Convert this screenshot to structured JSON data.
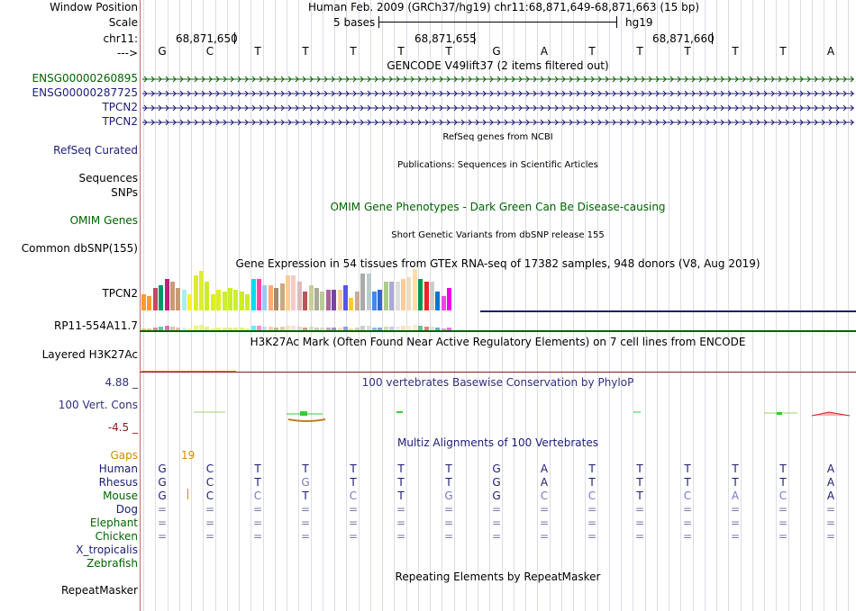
{
  "colors": {
    "navy": "#1c1c78",
    "green": "#006400",
    "orange": "#d28c00",
    "darkred": "#8b1a1a",
    "phylop_blue": "#303080",
    "grid": "#dcdce6"
  },
  "header": {
    "window_position_label": "Window Position",
    "window_position_value": "Human Feb. 2009 (GRCh37/hg19)   chr11:68,871,649-68,871,663 (15 bp)",
    "scale_label": "Scale",
    "scale_value": "5 bases",
    "scale_assembly": "hg19",
    "chrom_label": "chr11:",
    "arrow_label": "--->",
    "coord_ticks": [
      "68,871,650",
      "68,871,655",
      "68,871,660"
    ]
  },
  "reference_bases": [
    "G",
    "C",
    "T",
    "T",
    "T",
    "T",
    "T",
    "G",
    "A",
    "T",
    "T",
    "T",
    "T",
    "T",
    "A"
  ],
  "tracks": {
    "gencode_title": "GENCODE V49lift37 (2 items filtered out)",
    "gencode_items": [
      "ENSG00000260895",
      "ENSG00000287725",
      "TPCN2",
      "TPCN2"
    ],
    "refseq_title": "RefSeq genes from NCBI",
    "refseq_label": "RefSeq Curated",
    "pubs_title": "Publications: Sequences in Scientific Articles",
    "sequences_label": "Sequences",
    "snps_label": "SNPs",
    "omim_title": "OMIM Gene Phenotypes - Dark Green Can Be Disease-causing",
    "omim_label": "OMIM Genes",
    "dbsnp_title": "Short Genetic Variants from dbSNP release 155",
    "dbsnp_label": "Common dbSNP(155)",
    "gtex_title": "Gene Expression in 54 tissues from GTEx RNA-seq of 17382 samples, 948 donors (V8, Aug 2019)",
    "gtex_gene1": "TPCN2",
    "gtex_gene2": "RP11-554A11.7",
    "h3k27ac_title": "H3K27Ac Mark (Often Found Near Active Regulatory Elements) on 7 cell lines from ENCODE",
    "h3k27ac_label": "Layered H3K27Ac",
    "phylop_title": "100 vertebrates Basewise Conservation by PhyloP",
    "phylop_max": "4.88 _",
    "phylop_label": "100 Vert. Cons",
    "phylop_min": "-4.5 _",
    "multiz_title": "Multiz Alignments of 100 Vertebrates",
    "gaps_label": "Gaps",
    "gaps_value": "19",
    "species": [
      "Human",
      "Rhesus",
      "Mouse",
      "Dog",
      "Elephant",
      "Chicken",
      "X_tropicalis",
      "Zebrafish"
    ],
    "repeat_title": "Repeating Elements by RepeatMasker",
    "repeat_label": "RepeatMasker"
  },
  "alignments": {
    "Human": [
      "G",
      "C",
      "T",
      "T",
      "T",
      "T",
      "T",
      "G",
      "A",
      "T",
      "T",
      "T",
      "T",
      "T",
      "A"
    ],
    "Rhesus": [
      "G",
      "C",
      "T",
      "G",
      "T",
      "T",
      "T",
      "G",
      "A",
      "T",
      "T",
      "T",
      "T",
      "T",
      "A"
    ],
    "Mouse": [
      "G",
      "C",
      "C",
      "T",
      "C",
      "T",
      "G",
      "G",
      "C",
      "C",
      "T",
      "C",
      "A",
      "C",
      "A"
    ],
    "Dog": [
      "=",
      "=",
      "=",
      "=",
      "=",
      "=",
      "=",
      "=",
      "=",
      "=",
      "=",
      "=",
      "=",
      "=",
      "="
    ],
    "Elephant": [
      "=",
      "=",
      "=",
      "=",
      "=",
      "=",
      "=",
      "=",
      "=",
      "=",
      "=",
      "=",
      "=",
      "=",
      "="
    ],
    "Chicken": [
      "=",
      "=",
      "=",
      "=",
      "=",
      "=",
      "=",
      "=",
      "=",
      "=",
      "=",
      "=",
      "=",
      "=",
      "="
    ]
  },
  "gtex_expression": {
    "tpcn2": [
      0.4,
      0.35,
      0.55,
      0.6,
      0.75,
      0.7,
      0.55,
      0.5,
      0.4,
      0.85,
      0.95,
      0.7,
      0.4,
      0.5,
      0.45,
      0.55,
      0.5,
      0.45,
      0.4,
      0.75,
      0.75,
      0.6,
      0.6,
      0.55,
      0.65,
      0.85,
      0.85,
      0.7,
      0.45,
      0.6,
      0.55,
      0.45,
      0.5,
      0.5,
      0.5,
      0.6,
      0.3,
      0.45,
      0.9,
      0.9,
      0.45,
      0.5,
      0.7,
      0.7,
      0.7,
      0.75,
      0.8,
      1.0,
      0.75,
      0.7,
      0.7,
      0.45,
      0.35,
      0.55
    ],
    "colors": [
      "#ff9933",
      "#ff9933",
      "#cc4466",
      "#009966",
      "#bb2277",
      "#cc9977",
      "#cc9977",
      "#aaeeee",
      "#ffee33",
      "#ddee22",
      "#ddee33",
      "#ccee22",
      "#ddee22",
      "#ddee22",
      "#ccee33",
      "#ccee22",
      "#ccee33",
      "#ccee22",
      "#ccee22",
      "#00ddee",
      "#ff44aa",
      "#99ccee",
      "#ffaa77",
      "#aa8866",
      "#ccaa77",
      "#ffcc99",
      "#eecccc",
      "#ddbbbb",
      "#bb5555",
      "#cccc99",
      "#aaaa99",
      "#bbcc99",
      "#aa6699",
      "#7744aa",
      "#ffcc99",
      "#5555ee",
      "#ffcc22",
      "#ccaa99",
      "#aaaaaa",
      "#bbcccc",
      "#4488ee",
      "#3366cc",
      "#aacc88",
      "#aaaacc",
      "#dddddd",
      "#ffcc99",
      "#eeddbb",
      "#ffddaa",
      "#009955",
      "#ee2222",
      "#cccccc",
      "#0077cc",
      "#ee44ee",
      "#ee00ee"
    ]
  }
}
